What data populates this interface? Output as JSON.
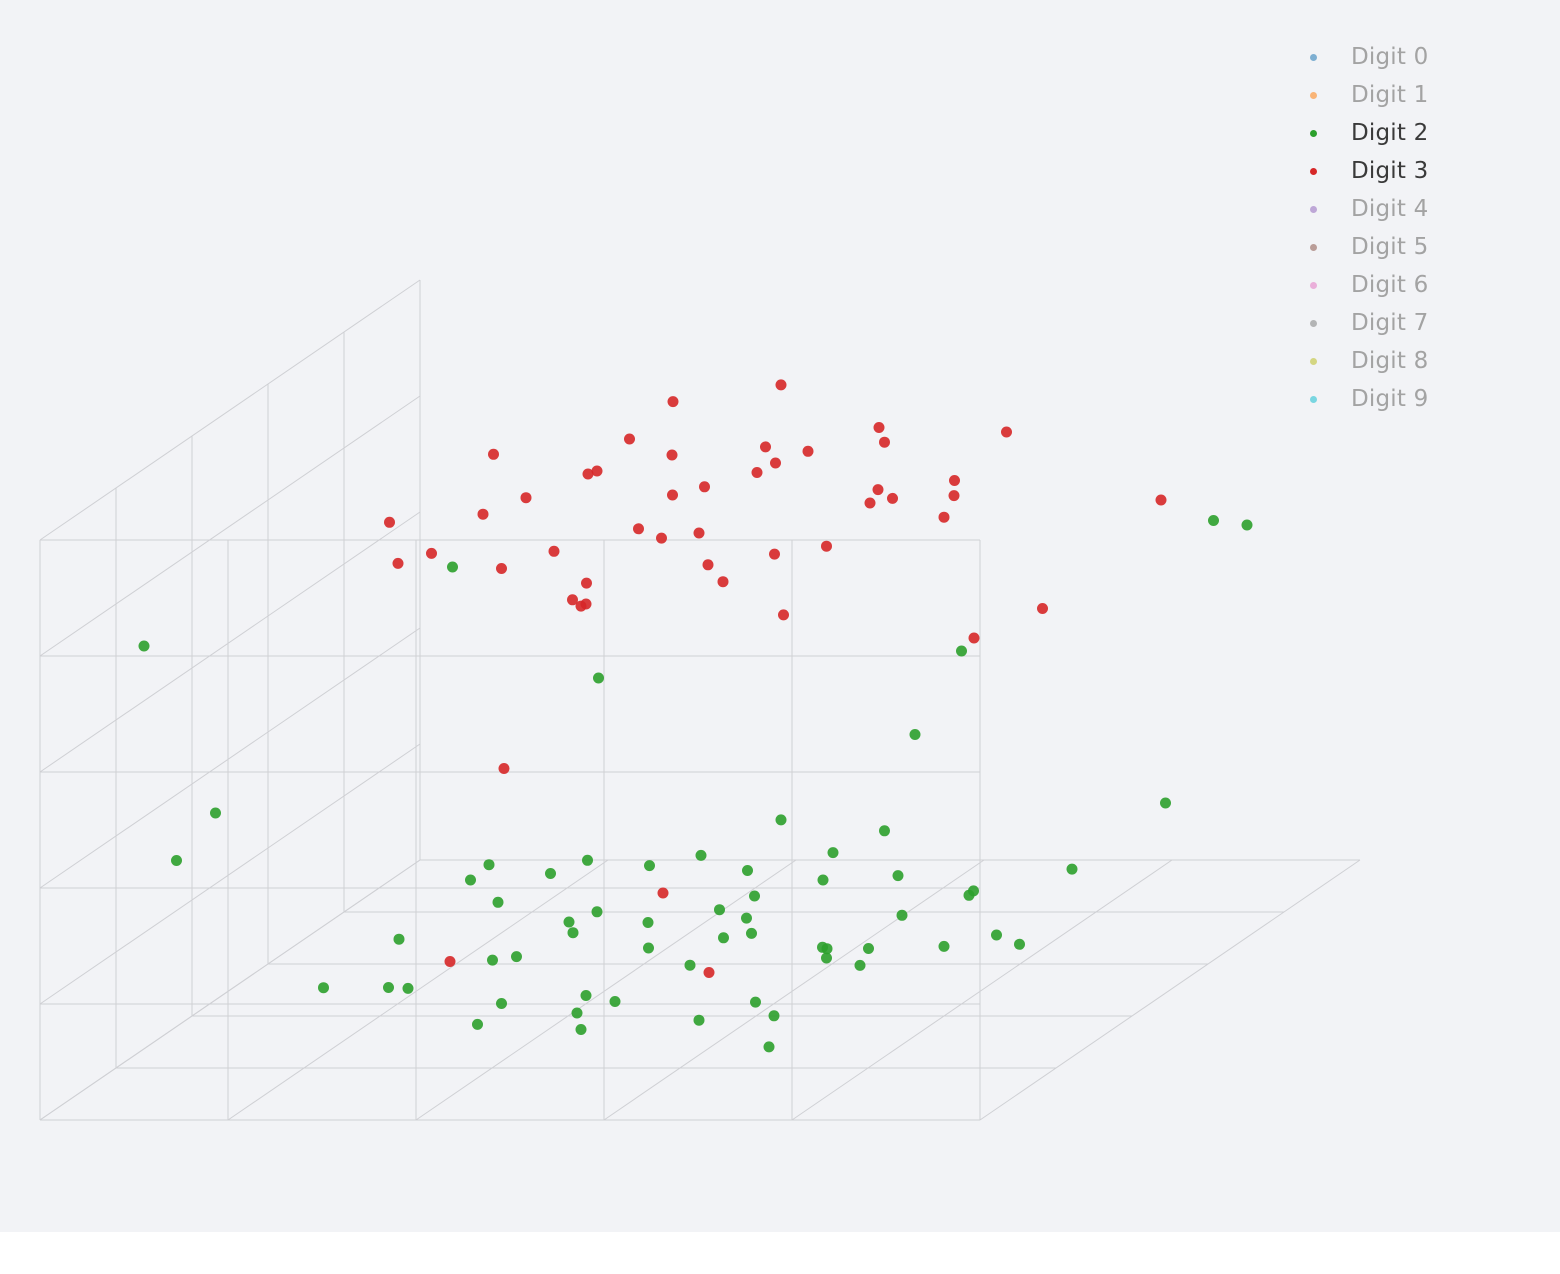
{
  "chart_data": {
    "type": "scatter",
    "projection": "3d",
    "title": "",
    "axes": {
      "x": {
        "title": ""
      },
      "y": {
        "title": ""
      },
      "z": {
        "title": ""
      },
      "grid": true,
      "tick_labels_visible": false
    },
    "background": "#f2f3f6",
    "legend": {
      "placement": "top-right"
    },
    "series": [
      {
        "name": "Digit 0",
        "color": "#1f77b4",
        "visible": "legendonly",
        "points": []
      },
      {
        "name": "Digit 1",
        "color": "#ff7f0e",
        "visible": "legendonly",
        "points": []
      },
      {
        "name": "Digit 2",
        "color": "#2ca02c",
        "visible": true,
        "points": [
          [
            -0.5,
            -0.45,
            -0.8
          ],
          [
            -0.4,
            -0.3,
            -0.9
          ],
          [
            -0.3,
            -0.2,
            -0.82
          ],
          [
            -0.2,
            -0.5,
            -0.76
          ],
          [
            -0.1,
            -0.35,
            -0.88
          ],
          [
            0,
            -0.25,
            -0.7
          ],
          [
            0.1,
            -0.4,
            -0.8
          ],
          [
            0.2,
            -0.15,
            -0.92
          ],
          [
            0.3,
            -0.3,
            -0.74
          ],
          [
            0.4,
            -0.45,
            -0.86
          ],
          [
            -0.45,
            -0.05,
            -0.72
          ],
          [
            -0.35,
            0.1,
            -0.84
          ],
          [
            -0.25,
            0.05,
            -0.78
          ],
          [
            -0.15,
            -0.1,
            -0.9
          ],
          [
            -0.05,
            0.15,
            -0.7
          ],
          [
            0.05,
            0,
            -0.82
          ],
          [
            0.15,
            0.1,
            -0.76
          ],
          [
            0.25,
            -0.05,
            -0.88
          ],
          [
            0.35,
            0.2,
            -0.8
          ],
          [
            0.45,
            0.05,
            -0.72
          ],
          [
            -0.5,
            0.3,
            -0.86
          ],
          [
            -0.3,
            0.35,
            -0.74
          ],
          [
            -0.1,
            0.4,
            -0.9
          ],
          [
            0.1,
            0.3,
            -0.78
          ],
          [
            0.3,
            0.45,
            -0.84
          ],
          [
            0.5,
            0.35,
            -0.7
          ],
          [
            -0.2,
            0.55,
            -0.8
          ],
          [
            0,
            0.6,
            -0.75
          ],
          [
            0.2,
            0.5,
            -0.88
          ],
          [
            0.4,
            0.6,
            -0.82
          ],
          [
            -0.55,
            -0.25,
            -0.68
          ],
          [
            -0.6,
            0.1,
            -0.78
          ],
          [
            0.55,
            -0.2,
            -0.9
          ],
          [
            0.6,
            0.2,
            -0.76
          ],
          [
            -0.35,
            -0.6,
            -0.84
          ],
          [
            0.15,
            -0.6,
            -0.72
          ],
          [
            0.35,
            -0.55,
            -0.92
          ],
          [
            -0.05,
            -0.55,
            -0.66
          ],
          [
            0.05,
            0.75,
            -0.8
          ],
          [
            -0.4,
            0.65,
            -0.7
          ],
          [
            0.45,
            0.75,
            -0.86
          ],
          [
            -0.65,
            -0.4,
            -0.8
          ],
          [
            0.65,
            -0.35,
            -0.74
          ],
          [
            -0.1,
            0.2,
            -0.95
          ],
          [
            0.2,
            0.25,
            -0.64
          ],
          [
            -0.3,
            -0.15,
            -0.62
          ],
          [
            0.3,
            -0.1,
            -0.96
          ],
          [
            0,
            -0.7,
            -0.84
          ],
          [
            -0.15,
            0.8,
            -0.76
          ],
          [
            0.7,
            0.05,
            -0.82
          ],
          [
            -0.7,
            0.25,
            -0.88
          ],
          [
            -0.9,
            0.7,
            0.5
          ],
          [
            -0.85,
            -0.8,
            0.1
          ],
          [
            0.9,
            0.85,
            0.55
          ],
          [
            0.8,
            -0.9,
            0.2
          ],
          [
            -0.95,
            0.2,
            -0.3
          ],
          [
            0.95,
            -0.1,
            -0.4
          ],
          [
            0.7,
            0.6,
            0.15
          ],
          [
            -0.6,
            -0.95,
            -0.35
          ],
          [
            0.5,
            0.95,
            -0.25
          ],
          [
            -0.75,
            0.9,
            -0.15
          ],
          [
            0.85,
            -0.6,
            0.35
          ]
        ]
      },
      {
        "name": "Digit 3",
        "color": "#d62728",
        "visible": true,
        "points": [
          [
            -0.4,
            -0.4,
            0.6
          ],
          [
            -0.3,
            -0.2,
            0.7
          ],
          [
            -0.2,
            -0.35,
            0.55
          ],
          [
            -0.1,
            -0.1,
            0.8
          ],
          [
            0,
            -0.3,
            0.65
          ],
          [
            0.1,
            -0.15,
            0.75
          ],
          [
            0.2,
            -0.4,
            0.5
          ],
          [
            0.3,
            -0.2,
            0.85
          ],
          [
            0.4,
            -0.35,
            0.6
          ],
          [
            -0.35,
            0.05,
            0.72
          ],
          [
            -0.25,
            0.15,
            0.58
          ],
          [
            -0.15,
            0,
            0.9
          ],
          [
            -0.05,
            0.2,
            0.68
          ],
          [
            0.05,
            0.1,
            0.78
          ],
          [
            0.15,
            0.25,
            0.52
          ],
          [
            0.25,
            0.05,
            0.88
          ],
          [
            0.35,
            0.2,
            0.62
          ],
          [
            0.45,
            0.1,
            0.74
          ],
          [
            -0.45,
            0.3,
            0.64
          ],
          [
            -0.3,
            0.4,
            0.82
          ],
          [
            -0.1,
            0.35,
            0.56
          ],
          [
            0.1,
            0.45,
            0.76
          ],
          [
            0.3,
            0.35,
            0.66
          ],
          [
            0.5,
            0.3,
            0.86
          ],
          [
            -0.2,
            0.55,
            0.7
          ],
          [
            0,
            0.6,
            0.6
          ],
          [
            0.2,
            0.5,
            0.8
          ],
          [
            0.4,
            0.55,
            0.54
          ],
          [
            -0.5,
            -0.15,
            0.78
          ],
          [
            0.5,
            -0.1,
            0.66
          ],
          [
            -0.4,
            0.6,
            0.74
          ],
          [
            0.45,
            -0.5,
            0.7
          ],
          [
            -0.05,
            -0.55,
            0.84
          ],
          [
            0.15,
            -0.6,
            0.62
          ],
          [
            -0.3,
            -0.6,
            0.76
          ],
          [
            0.6,
            0.2,
            0.72
          ],
          [
            -0.6,
            0.15,
            0.68
          ],
          [
            0.05,
            0.75,
            0.66
          ],
          [
            0.3,
            0.7,
            0.78
          ],
          [
            -0.15,
            0.3,
            0.48
          ],
          [
            0.2,
            0.15,
            0.94
          ],
          [
            0.85,
            0.3,
            0.45
          ],
          [
            0.9,
            -0.2,
            0.6
          ],
          [
            -0.2,
            -0.3,
            -0.8
          ],
          [
            0.1,
            0.2,
            -0.85
          ],
          [
            -0.35,
            0.45,
            -0.7
          ],
          [
            -0.7,
            -0.7,
            -0.55
          ],
          [
            0.3,
            -0.7,
            -0.1
          ]
        ]
      },
      {
        "name": "Digit 4",
        "color": "#9467bd",
        "visible": "legendonly",
        "points": []
      },
      {
        "name": "Digit 5",
        "color": "#8c564b",
        "visible": "legendonly",
        "points": []
      },
      {
        "name": "Digit 6",
        "color": "#e377c2",
        "visible": "legendonly",
        "points": []
      },
      {
        "name": "Digit 7",
        "color": "#7f7f7f",
        "visible": "legendonly",
        "points": []
      },
      {
        "name": "Digit 8",
        "color": "#bcbd22",
        "visible": "legendonly",
        "points": []
      },
      {
        "name": "Digit 9",
        "color": "#17becf",
        "visible": "legendonly",
        "points": []
      }
    ]
  }
}
